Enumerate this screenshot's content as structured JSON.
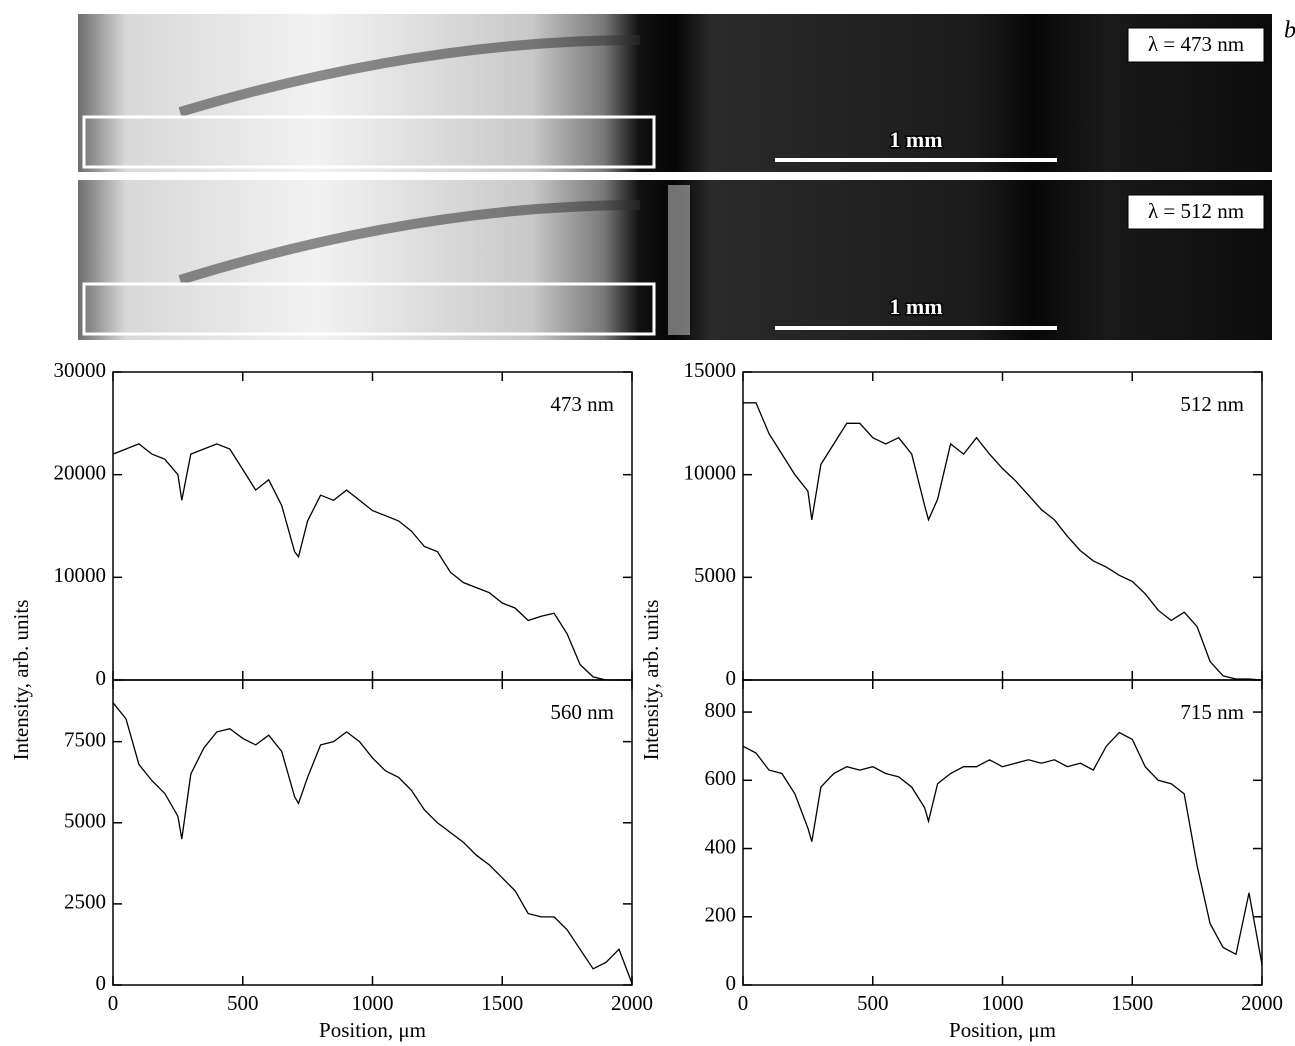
{
  "panel_label": "b",
  "images": [
    {
      "label": "λ = 473 nm",
      "scale_bar": "1 mm"
    },
    {
      "label": "λ = 512 nm",
      "scale_bar": "1 mm"
    }
  ],
  "chart_data": [
    {
      "type": "line",
      "annotation": "473 nm",
      "ylabel": "Intensity, arb. units",
      "xtick_labels": false,
      "color": "#000000",
      "x": [
        0,
        50,
        100,
        150,
        200,
        250,
        265,
        300,
        350,
        400,
        450,
        500,
        550,
        600,
        650,
        700,
        715,
        750,
        800,
        850,
        900,
        950,
        1000,
        1050,
        1100,
        1150,
        1200,
        1250,
        1300,
        1350,
        1400,
        1450,
        1500,
        1550,
        1600,
        1650,
        1700,
        1750,
        1800,
        1850,
        1900,
        1950,
        2000
      ],
      "values": [
        22000,
        22500,
        23000,
        22000,
        21500,
        20000,
        17500,
        22000,
        22500,
        23000,
        22500,
        20500,
        18500,
        19500,
        17000,
        12500,
        12000,
        15500,
        18000,
        17500,
        18500,
        17500,
        16500,
        16000,
        15500,
        14500,
        13000,
        12500,
        10500,
        9500,
        9000,
        8500,
        7500,
        7000,
        5800,
        6200,
        6500,
        4500,
        1500,
        300,
        0,
        0,
        0
      ],
      "xlim": [
        0,
        2000
      ],
      "xticks": [
        0,
        500,
        1000,
        1500,
        2000
      ],
      "ylim": [
        0,
        30000
      ],
      "yticks": [
        0,
        10000,
        20000,
        30000
      ]
    },
    {
      "type": "line",
      "annotation": "512 nm",
      "ylabel": "Intensity, arb. units",
      "xtick_labels": false,
      "color": "#000000",
      "x": [
        0,
        50,
        100,
        150,
        200,
        250,
        265,
        300,
        350,
        400,
        450,
        500,
        550,
        600,
        650,
        700,
        715,
        750,
        800,
        850,
        900,
        950,
        1000,
        1050,
        1100,
        1150,
        1200,
        1250,
        1300,
        1350,
        1400,
        1450,
        1500,
        1550,
        1600,
        1650,
        1700,
        1750,
        1800,
        1850,
        1900,
        1950,
        2000
      ],
      "values": [
        13500,
        13500,
        12000,
        11000,
        10000,
        9200,
        7800,
        10500,
        11500,
        12500,
        12500,
        11800,
        11500,
        11800,
        11000,
        8500,
        7800,
        8800,
        11500,
        11000,
        11800,
        11000,
        10300,
        9700,
        9000,
        8300,
        7800,
        7000,
        6300,
        5800,
        5500,
        5100,
        4800,
        4200,
        3400,
        2900,
        3300,
        2600,
        900,
        200,
        50,
        50,
        0
      ],
      "xlim": [
        0,
        2000
      ],
      "xticks": [
        0,
        500,
        1000,
        1500,
        2000
      ],
      "ylim": [
        0,
        15000
      ],
      "yticks": [
        0,
        5000,
        10000,
        15000
      ]
    },
    {
      "type": "line",
      "annotation": "560 nm",
      "xlabel": "Position, μm",
      "xtick_labels": true,
      "color": "#000000",
      "x": [
        0,
        50,
        100,
        150,
        200,
        250,
        265,
        300,
        350,
        400,
        450,
        500,
        550,
        600,
        650,
        700,
        715,
        750,
        800,
        850,
        900,
        950,
        1000,
        1050,
        1100,
        1150,
        1200,
        1250,
        1300,
        1350,
        1400,
        1450,
        1500,
        1550,
        1600,
        1650,
        1700,
        1750,
        1800,
        1850,
        1900,
        1950,
        2000
      ],
      "values": [
        8700,
        8200,
        6800,
        6300,
        5900,
        5200,
        4500,
        6500,
        7300,
        7800,
        7900,
        7600,
        7400,
        7700,
        7200,
        5800,
        5600,
        6400,
        7400,
        7500,
        7800,
        7500,
        7000,
        6600,
        6400,
        6000,
        5400,
        5000,
        4700,
        4400,
        4000,
        3700,
        3300,
        2900,
        2200,
        2100,
        2100,
        1700,
        1100,
        500,
        700,
        1100,
        50
      ],
      "xlim": [
        0,
        2000
      ],
      "xticks": [
        0,
        500,
        1000,
        1500,
        2000
      ],
      "ylim": [
        0,
        9400
      ],
      "yticks": [
        0,
        2500,
        5000,
        7500
      ]
    },
    {
      "type": "line",
      "annotation": "715 nm",
      "xlabel": "Position, μm",
      "xtick_labels": true,
      "color": "#000000",
      "x": [
        0,
        50,
        100,
        150,
        200,
        250,
        265,
        300,
        350,
        400,
        450,
        500,
        550,
        600,
        650,
        700,
        715,
        750,
        800,
        850,
        900,
        950,
        1000,
        1050,
        1100,
        1150,
        1200,
        1250,
        1300,
        1350,
        1400,
        1450,
        1500,
        1550,
        1600,
        1650,
        1700,
        1750,
        1800,
        1850,
        1900,
        1950,
        2000
      ],
      "values": [
        700,
        680,
        630,
        620,
        560,
        460,
        420,
        580,
        620,
        640,
        630,
        640,
        620,
        610,
        580,
        520,
        480,
        590,
        620,
        640,
        640,
        660,
        640,
        650,
        660,
        650,
        660,
        640,
        650,
        630,
        700,
        740,
        720,
        640,
        600,
        590,
        560,
        350,
        180,
        110,
        90,
        270,
        60
      ],
      "xlim": [
        0,
        2000
      ],
      "xticks": [
        0,
        500,
        1000,
        1500,
        2000
      ],
      "ylim": [
        0,
        894
      ],
      "yticks": [
        0,
        200,
        400,
        600,
        800
      ]
    }
  ]
}
